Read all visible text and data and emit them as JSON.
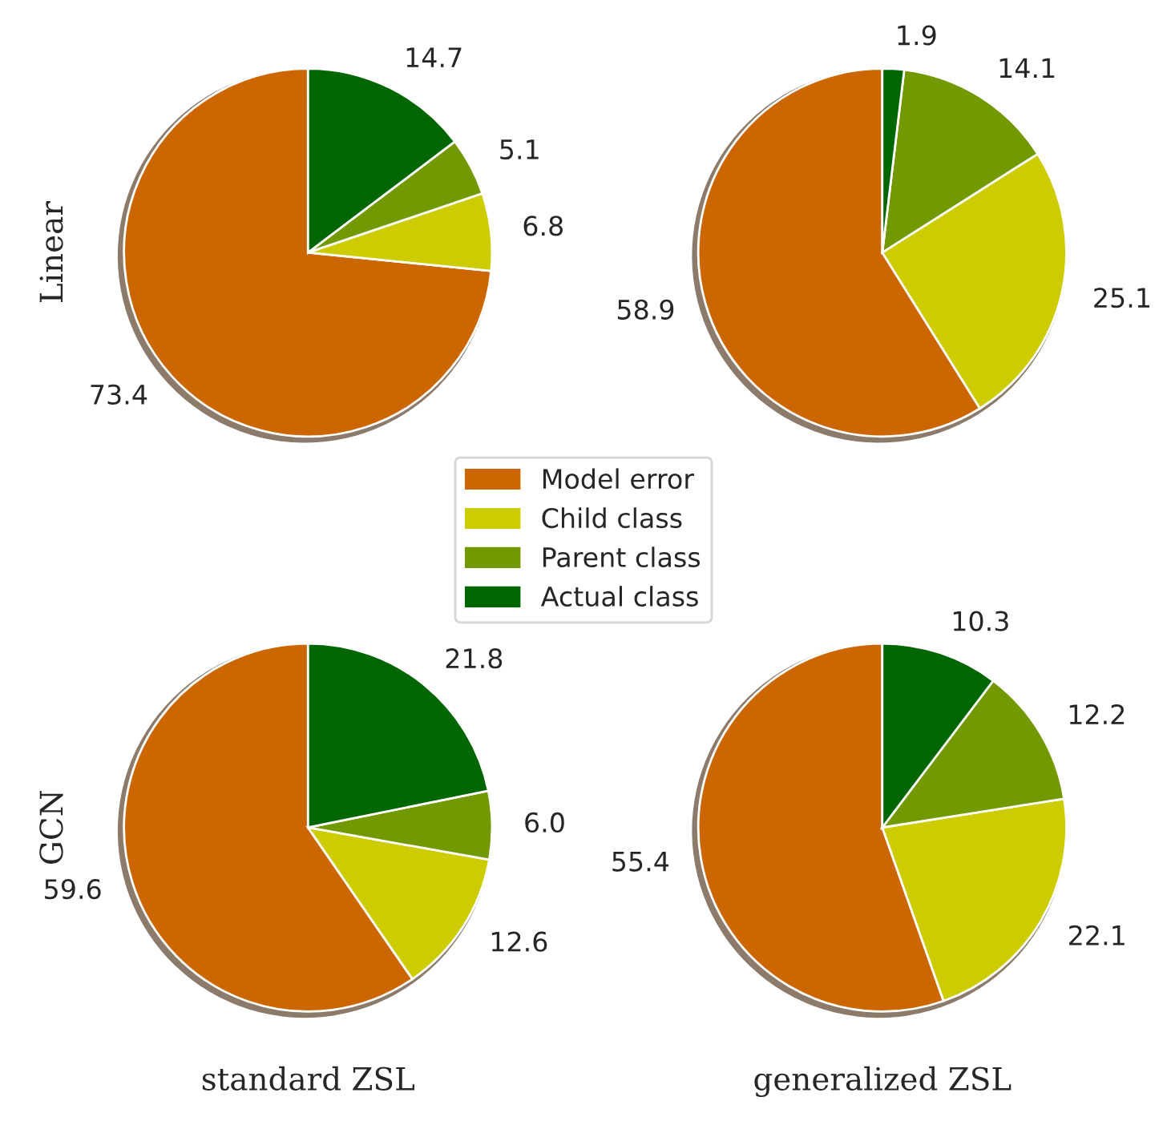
{
  "chart_data": [
    {
      "type": "pie",
      "ylabel": "Linear",
      "categories": [
        "Model error",
        "Child class",
        "Parent class",
        "Actual class"
      ],
      "values": [
        73.4,
        6.8,
        5.1,
        14.7
      ],
      "colors": [
        "#cc6600",
        "#cccc00",
        "#739900",
        "#006600"
      ],
      "data_labels": true,
      "value_labels": [
        "73.4",
        "6.8",
        "5.1",
        "14.7"
      ],
      "legend": "bottom right"
    },
    {
      "type": "pie",
      "categories": [
        null,
        null,
        null,
        null
      ],
      "values": [
        58.9,
        25.1,
        14.1,
        1.9
      ],
      "colors": [
        "#cc6600",
        "#cccc00",
        "#739900",
        "#006600"
      ],
      "data_labels": true,
      "value_labels": [
        "58.9",
        "25.1",
        "14.1",
        "1.9"
      ]
    },
    {
      "type": "pie",
      "ylabel": "GCN",
      "xlabel": "standard ZSL",
      "categories": [
        null,
        null,
        null,
        null
      ],
      "values": [
        59.6,
        12.6,
        6.0,
        21.8
      ],
      "colors": [
        "#cc6600",
        "#cccc00",
        "#739900",
        "#006600"
      ],
      "data_labels": true,
      "value_labels": [
        "59.6",
        "12.6",
        "6.0",
        "21.8"
      ]
    },
    {
      "type": "pie",
      "xlabel": "generalized ZSL",
      "categories": [
        null,
        null,
        null,
        null
      ],
      "values": [
        55.4,
        22.1,
        12.2,
        10.3
      ],
      "colors": [
        "#cc6600",
        "#cccc00",
        "#739900",
        "#006600"
      ],
      "data_labels": true,
      "value_labels": [
        "55.4",
        "22.1",
        "12.2",
        "10.3"
      ]
    }
  ]
}
